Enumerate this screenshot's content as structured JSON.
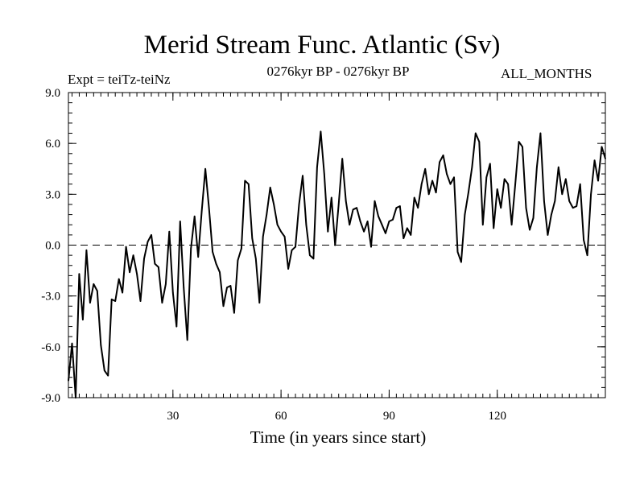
{
  "chart_data": {
    "type": "line",
    "title": "Merid Stream Func. Atlantic (Sv)",
    "subtitle_left": "Expt = teiTz-teiNz",
    "subtitle_center": "0276kyr BP - 0276kyr BP",
    "subtitle_right": "ALL_MONTHS",
    "xlabel": "Time (in years since start)",
    "ylabel": "",
    "xlim": [
      1,
      150
    ],
    "ylim": [
      -9,
      9
    ],
    "xticks": [
      30,
      60,
      90,
      120
    ],
    "xtick_labels": [
      "30",
      "60",
      "90",
      "120"
    ],
    "yticks": [
      -9,
      -6,
      -3,
      0,
      3,
      6,
      9
    ],
    "ytick_labels": [
      "-9.0",
      "-6.0",
      "-3.0",
      "0.0",
      "3.0",
      "6.0",
      "9.0"
    ],
    "reference_line": {
      "y": 0,
      "style": "dashed"
    },
    "series": [
      {
        "name": "Merid Stream Func. Atlantic",
        "x": [
          1,
          2,
          3,
          4,
          5,
          6,
          7,
          8,
          9,
          10,
          11,
          12,
          13,
          14,
          15,
          16,
          17,
          18,
          19,
          20,
          21,
          22,
          23,
          24,
          25,
          26,
          27,
          28,
          29,
          30,
          31,
          32,
          33,
          34,
          35,
          36,
          37,
          38,
          39,
          40,
          41,
          42,
          43,
          44,
          45,
          46,
          47,
          48,
          49,
          50,
          51,
          52,
          53,
          54,
          55,
          56,
          57,
          58,
          59,
          60,
          61,
          62,
          63,
          64,
          65,
          66,
          67,
          68,
          69,
          70,
          71,
          72,
          73,
          74,
          75,
          76,
          77,
          78,
          79,
          80,
          81,
          82,
          83,
          84,
          85,
          86,
          87,
          88,
          89,
          90,
          91,
          92,
          93,
          94,
          95,
          96,
          97,
          98,
          99,
          100,
          101,
          102,
          103,
          104,
          105,
          106,
          107,
          108,
          109,
          110,
          111,
          112,
          113,
          114,
          115,
          116,
          117,
          118,
          119,
          120,
          121,
          122,
          123,
          124,
          125,
          126,
          127,
          128,
          129,
          130,
          131,
          132,
          133,
          134,
          135,
          136,
          137,
          138,
          139,
          140,
          141,
          142,
          143,
          144,
          145,
          146,
          147,
          148,
          149,
          150
        ],
        "values": [
          -8.0,
          -5.8,
          -9.0,
          -1.7,
          -4.4,
          -0.3,
          -3.4,
          -2.3,
          -2.7,
          -5.9,
          -7.4,
          -7.7,
          -3.2,
          -3.3,
          -2.0,
          -2.8,
          -0.1,
          -1.6,
          -0.6,
          -1.7,
          -3.3,
          -0.8,
          0.2,
          0.6,
          -1.1,
          -1.3,
          -3.4,
          -2.3,
          0.8,
          -2.8,
          -4.8,
          1.4,
          -2.5,
          -5.6,
          -0.2,
          1.7,
          -0.7,
          2.0,
          4.5,
          2.2,
          -0.4,
          -1.1,
          -1.6,
          -3.6,
          -2.5,
          -2.4,
          -4.0,
          -0.9,
          -0.2,
          3.8,
          3.6,
          0.4,
          -0.8,
          -3.4,
          0.5,
          1.8,
          3.4,
          2.4,
          1.2,
          0.8,
          0.5,
          -1.4,
          -0.3,
          -0.1,
          2.4,
          4.1,
          1.2,
          -0.6,
          -0.8,
          4.6,
          6.7,
          4.2,
          0.8,
          2.8,
          0.0,
          2.4,
          5.1,
          2.6,
          1.2,
          2.1,
          2.2,
          1.4,
          0.8,
          1.4,
          -0.1,
          2.6,
          1.7,
          1.2,
          0.7,
          1.4,
          1.5,
          2.2,
          2.3,
          0.4,
          1.0,
          0.6,
          2.8,
          2.2,
          3.6,
          4.5,
          3.0,
          3.8,
          3.1,
          4.9,
          5.3,
          4.2,
          3.6,
          4.0,
          -0.4,
          -1.0,
          1.8,
          3.1,
          4.6,
          6.6,
          6.1,
          1.2,
          4.0,
          4.8,
          1.0,
          3.3,
          2.2,
          3.9,
          3.6,
          1.2,
          3.6,
          6.1,
          5.8,
          2.2,
          0.9,
          1.6,
          4.6,
          6.6,
          2.6,
          0.6,
          1.8,
          2.6,
          4.6,
          3.0,
          3.9,
          2.6,
          2.2,
          2.3,
          3.6,
          0.3,
          -0.6,
          3.0,
          5.0,
          3.8,
          5.8,
          5.1
        ]
      }
    ]
  }
}
